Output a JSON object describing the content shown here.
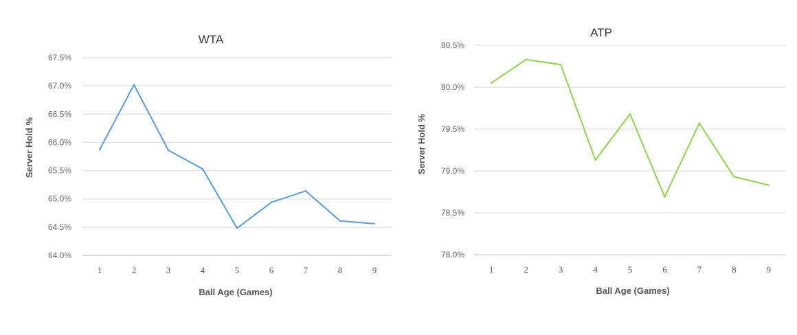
{
  "chart_data": [
    {
      "type": "line",
      "title": "WTA",
      "xlabel": "Ball Age (Games)",
      "ylabel": "Server Hold %",
      "x": [
        1,
        2,
        3,
        4,
        5,
        6,
        7,
        8,
        9
      ],
      "series": [
        {
          "values": [
            65.87,
            67.02,
            65.86,
            65.53,
            64.48,
            64.94,
            65.14,
            64.61,
            64.56
          ],
          "color": "#5b9bd5"
        }
      ],
      "ylim": [
        64.0,
        67.5
      ],
      "yticks": [
        "64.0%",
        "64.5%",
        "65.0%",
        "65.5%",
        "66.0%",
        "66.5%",
        "67.0%",
        "67.5%"
      ],
      "xticks": [
        "1",
        "2",
        "3",
        "4",
        "5",
        "6",
        "7",
        "8",
        "9"
      ],
      "grid": true,
      "legend": "none"
    },
    {
      "type": "line",
      "title": "ATP",
      "xlabel": "Ball Age (Games)",
      "ylabel": "Server Hold %",
      "x": [
        1,
        2,
        3,
        4,
        5,
        6,
        7,
        8,
        9
      ],
      "series": [
        {
          "values": [
            80.05,
            80.33,
            80.27,
            79.13,
            79.68,
            78.69,
            79.57,
            78.93,
            78.83
          ],
          "color": "#8fd14f"
        }
      ],
      "ylim": [
        78.0,
        80.5
      ],
      "yticks": [
        "78.0%",
        "78.5%",
        "79.0%",
        "79.5%",
        "80.0%",
        "80.5%"
      ],
      "xticks": [
        "1",
        "2",
        "3",
        "4",
        "5",
        "6",
        "7",
        "8",
        "9"
      ],
      "grid": true,
      "legend": "none"
    }
  ]
}
